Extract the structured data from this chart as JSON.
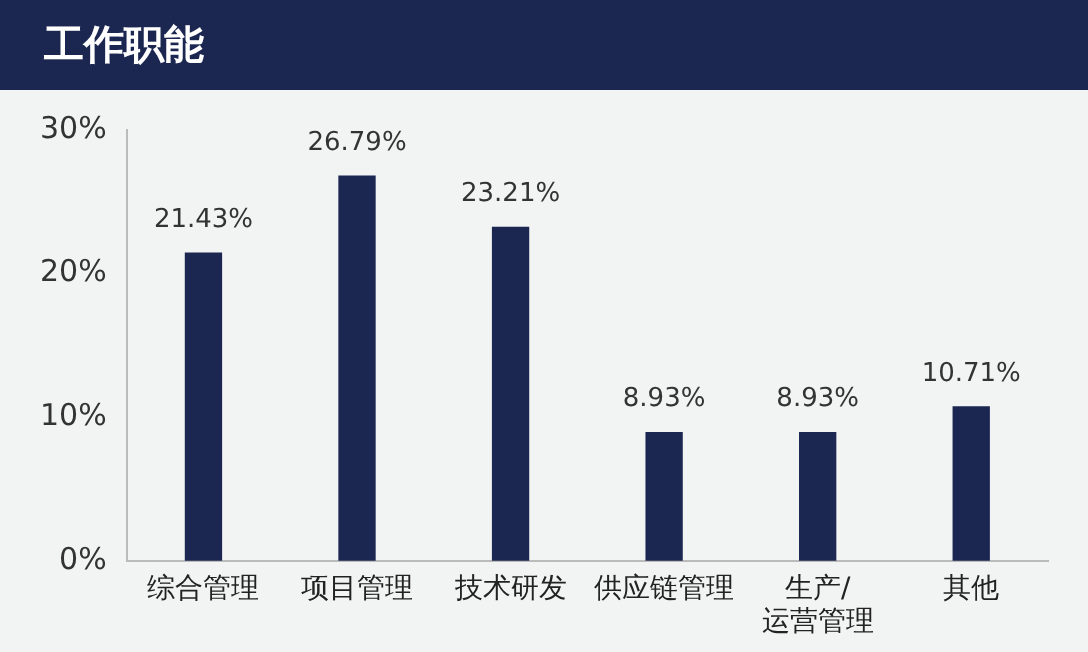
{
  "chart_data": {
    "type": "bar",
    "title": "工作职能",
    "categories": [
      "综合管理",
      "项目管理",
      "技术研发",
      "供应链管理",
      "生产/\n运营管理",
      "其他"
    ],
    "values": [
      21.43,
      26.79,
      23.21,
      8.93,
      8.93,
      10.71
    ],
    "value_labels": [
      "21.43%",
      "26.79%",
      "23.21%",
      "8.93%",
      "8.93%",
      "10.71%"
    ],
    "color": "#1b2651",
    "ylim": [
      0,
      30
    ],
    "yticks": [
      {
        "value": 0,
        "label": "0%"
      },
      {
        "value": 10,
        "label": "10%"
      },
      {
        "value": 20,
        "label": "20%"
      },
      {
        "value": 30,
        "label": "30%"
      }
    ],
    "grid": false
  }
}
